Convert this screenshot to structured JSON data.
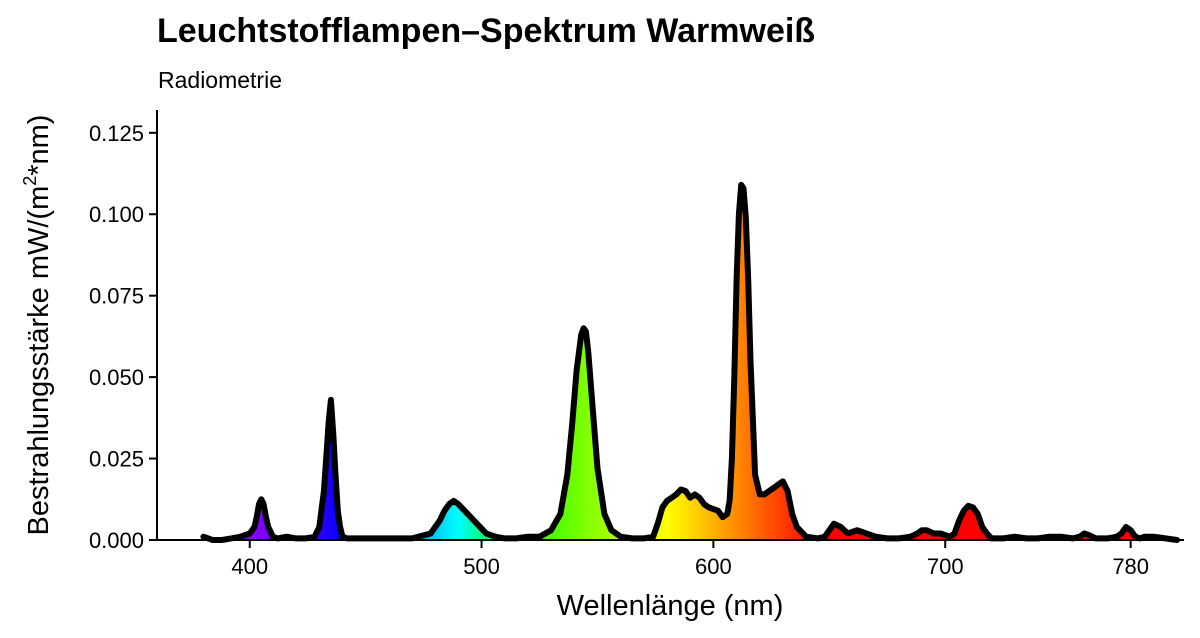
{
  "chart_data": {
    "type": "area",
    "title": "Leuchtstofflampen–Spektrum Warmweiß",
    "subtitle": "Radiometrie",
    "xlabel": "Wellenlänge (nm)",
    "ylabel_parts": [
      "Bestrahlungsstärke  mW/(m",
      "2",
      "*nm)"
    ],
    "xlim": [
      360,
      803
    ],
    "ylim": [
      0,
      0.132
    ],
    "x_ticks": [
      400,
      500,
      600,
      700,
      780
    ],
    "x_tick_labels": [
      "400",
      "500",
      "600",
      "700",
      "780"
    ],
    "y_ticks": [
      0,
      0.025,
      0.05,
      0.075,
      0.1,
      0.125
    ],
    "y_tick_labels": [
      "0.000",
      "0.025",
      "0.050",
      "0.075",
      "0.100",
      "0.125"
    ],
    "grid": false,
    "legend": "none",
    "fill": "wavelength-colored spectrum",
    "line_color": "#000000",
    "series": [
      {
        "x": [
          380,
          384,
          388,
          392,
          396,
          400,
          402,
          403,
          404,
          405,
          406,
          407,
          408,
          410,
          412,
          416,
          420,
          424,
          428,
          430,
          432,
          433,
          434,
          435,
          436,
          437,
          438,
          439,
          440,
          442,
          446,
          450,
          460,
          470,
          478,
          482,
          484,
          486,
          488,
          490,
          494,
          498,
          502,
          506,
          510,
          515,
          520,
          525,
          530,
          534,
          537,
          539,
          541,
          543,
          544,
          545,
          546,
          548,
          550,
          553,
          556,
          560,
          565,
          570,
          574,
          576,
          578,
          580,
          582,
          584,
          586,
          588,
          590,
          592,
          594,
          596,
          598,
          600,
          602,
          604,
          606,
          607,
          608,
          609,
          610,
          611,
          612,
          613,
          614,
          615,
          616,
          618,
          620,
          622,
          624,
          626,
          628,
          630,
          632,
          634,
          636,
          640,
          645,
          648,
          650,
          652,
          655,
          658,
          662,
          666,
          670,
          675,
          680,
          685,
          688,
          690,
          692,
          695,
          698,
          702,
          704,
          706,
          708,
          710,
          712,
          714,
          716,
          718,
          720,
          725,
          730,
          735,
          740,
          745,
          750,
          755,
          758,
          760,
          762,
          765,
          770,
          774,
          776,
          778,
          780,
          782,
          784,
          786,
          790,
          795,
          800
        ],
        "y": [
          0.001,
          0,
          0,
          0.0005,
          0.001,
          0.002,
          0.004,
          0.007,
          0.011,
          0.0125,
          0.011,
          0.007,
          0.004,
          0.001,
          0.0005,
          0.001,
          0.0005,
          0.0005,
          0.001,
          0.004,
          0.015,
          0.025,
          0.036,
          0.043,
          0.033,
          0.02,
          0.009,
          0.004,
          0.001,
          0.0005,
          0.0005,
          0.0005,
          0.0005,
          0.0005,
          0.002,
          0.006,
          0.009,
          0.011,
          0.012,
          0.011,
          0.008,
          0.005,
          0.002,
          0.001,
          0.0005,
          0.0005,
          0.001,
          0.001,
          0.003,
          0.008,
          0.02,
          0.035,
          0.052,
          0.063,
          0.065,
          0.064,
          0.058,
          0.04,
          0.022,
          0.008,
          0.003,
          0.001,
          0.0005,
          0.0005,
          0.001,
          0.005,
          0.01,
          0.012,
          0.013,
          0.014,
          0.0155,
          0.015,
          0.013,
          0.014,
          0.013,
          0.011,
          0.01,
          0.0095,
          0.009,
          0.007,
          0.008,
          0.012,
          0.025,
          0.05,
          0.08,
          0.1,
          0.109,
          0.108,
          0.099,
          0.08,
          0.055,
          0.02,
          0.014,
          0.014,
          0.015,
          0.016,
          0.017,
          0.018,
          0.015,
          0.008,
          0.004,
          0.001,
          0.0005,
          0.001,
          0.003,
          0.005,
          0.004,
          0.002,
          0.003,
          0.002,
          0.001,
          0.0005,
          0.0005,
          0.001,
          0.002,
          0.003,
          0.003,
          0.002,
          0.002,
          0.001,
          0.002,
          0.006,
          0.009,
          0.0105,
          0.01,
          0.008,
          0.004,
          0.002,
          0.0005,
          0.0005,
          0.001,
          0.0005,
          0.0005,
          0.001,
          0.001,
          0.0005,
          0.001,
          0.002,
          0.0015,
          0.0005,
          0.0005,
          0.001,
          0.002,
          0.004,
          0.003,
          0.001,
          0.0005,
          0.001,
          0.001,
          0.0005,
          0
        ]
      }
    ]
  }
}
